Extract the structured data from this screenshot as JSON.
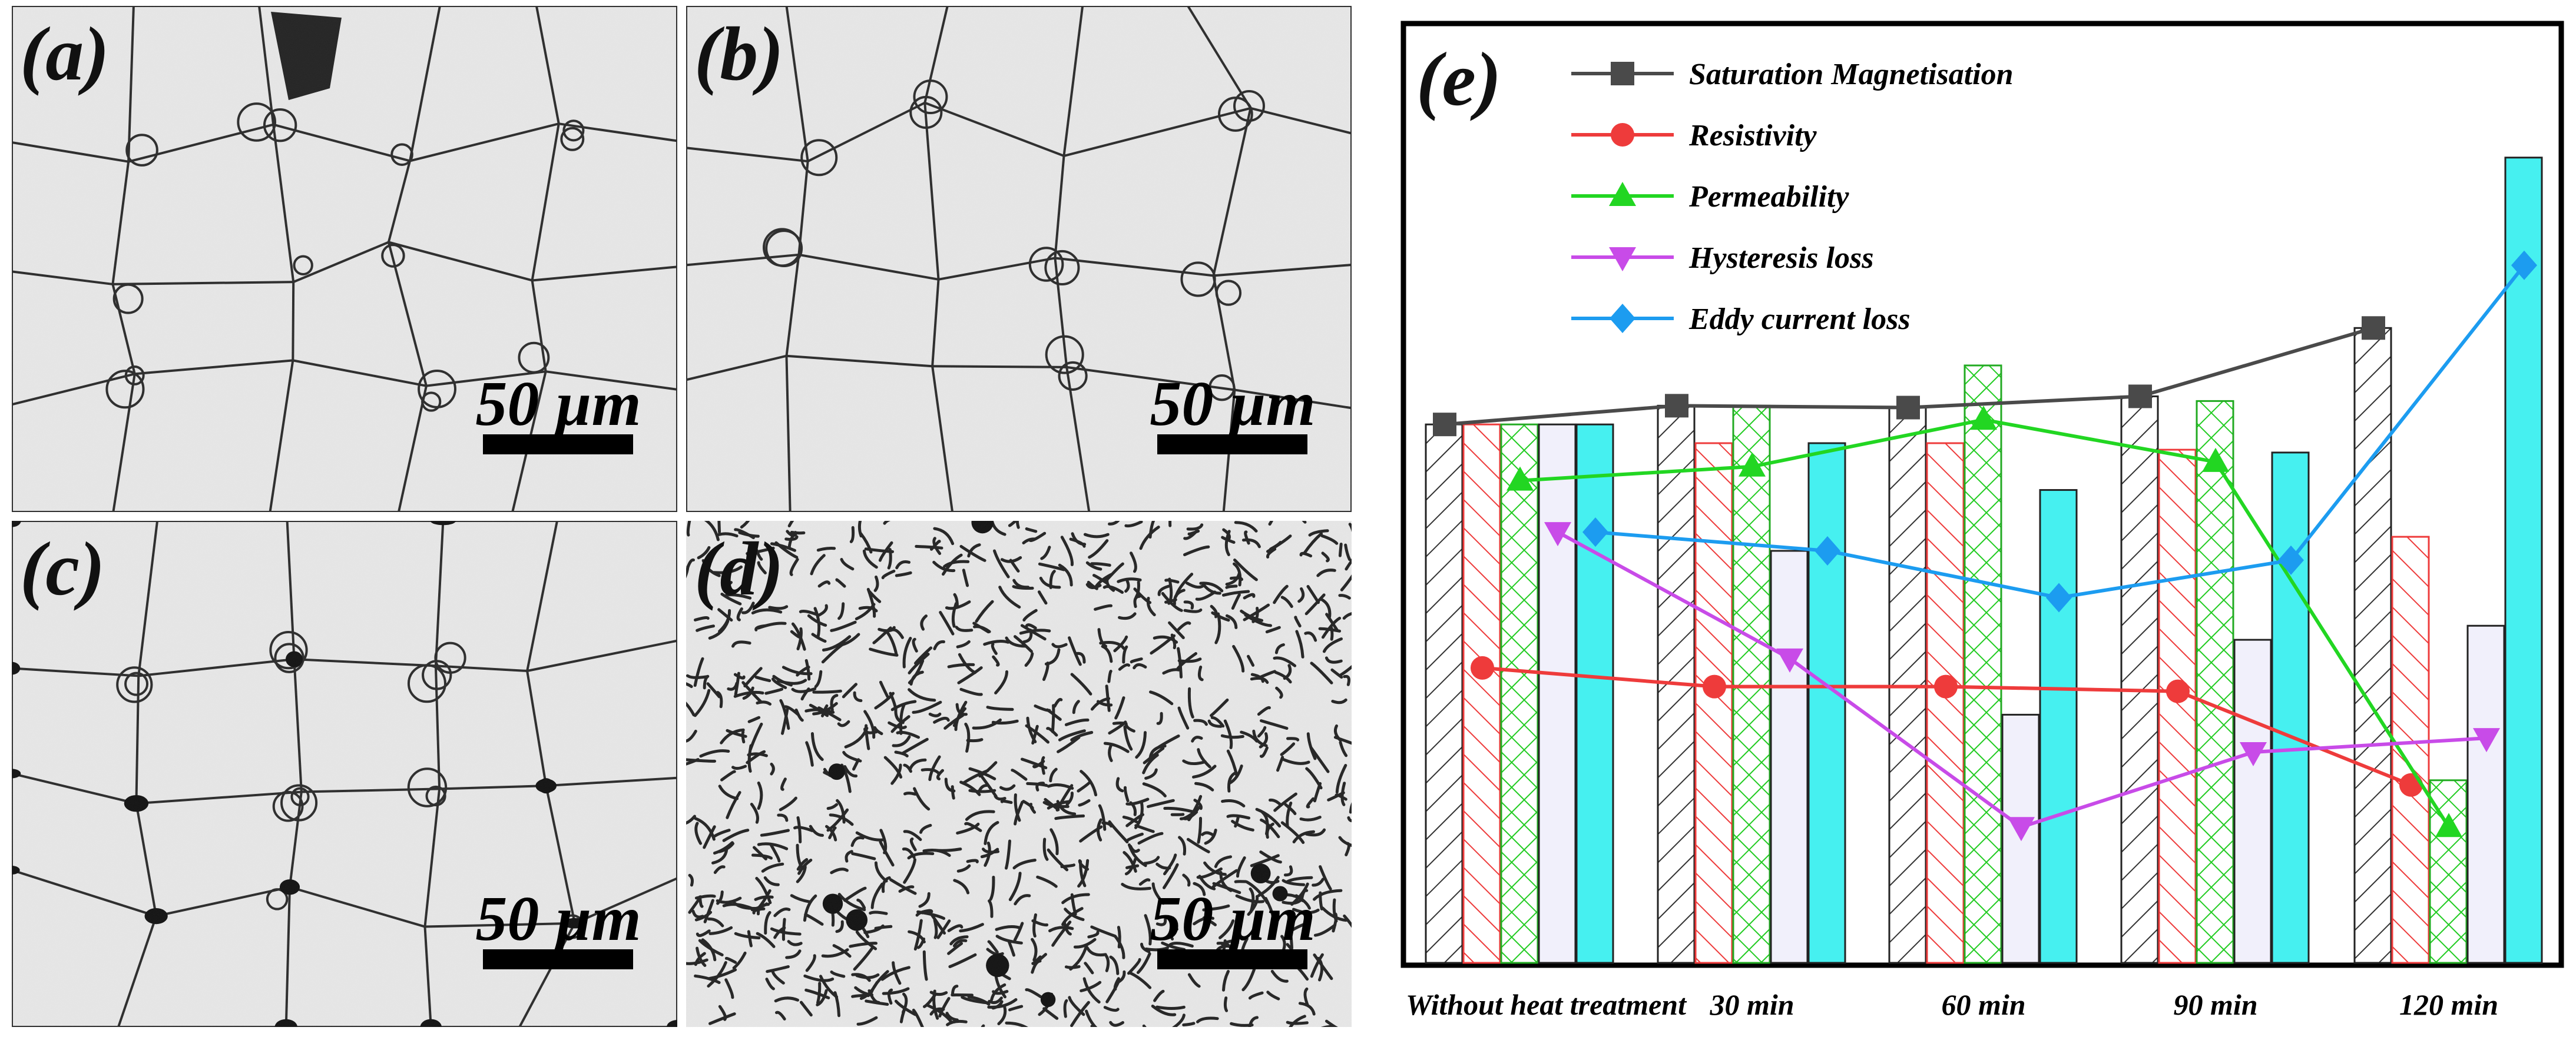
{
  "panels": [
    {
      "label": "(a)",
      "scale_bar": "50 µm",
      "texture": "grains"
    },
    {
      "label": "(b)",
      "scale_bar": "50 µm",
      "texture": "grains"
    },
    {
      "label": "(c)",
      "scale_bar": "50 µm",
      "texture": "grains-pores"
    },
    {
      "label": "(d)",
      "scale_bar": "50 µm",
      "texture": "worm"
    }
  ],
  "chart_data": {
    "type": "bar",
    "panel_label": "(e)",
    "categories": [
      "Without heat treatment",
      "30 min",
      "60 min",
      "90 min",
      "120 min"
    ],
    "ylim": [
      0,
      100
    ],
    "grid": false,
    "legend_position": "top-left",
    "series": [
      {
        "name": "Saturation Magnetisation",
        "color": "#4a4a4a",
        "marker": "square",
        "fill": "hatch-black",
        "values": [
          57.5,
          59.5,
          59.3,
          60.5,
          67.8
        ]
      },
      {
        "name": "Resistivity",
        "color": "#ee3b3b",
        "marker": "circle",
        "fill": "hatch-red",
        "values": [
          57.5,
          55.5,
          55.5,
          54.8,
          45.5
        ]
      },
      {
        "name": "Permeability",
        "color": "#22d622",
        "marker": "triangle-up",
        "fill": "crosshatch-green",
        "values": [
          57.5,
          59.5,
          63.8,
          60.0,
          19.5
        ]
      },
      {
        "name": "Hysteresis loss",
        "color": "#c84be8",
        "marker": "triangle-down",
        "fill": "lavender",
        "values": [
          57.5,
          44.0,
          26.5,
          34.5,
          36.0
        ]
      },
      {
        "name": "Eddy current loss",
        "color": "#1c9cf0",
        "marker": "diamond",
        "fill": "cyan",
        "values": [
          57.5,
          55.5,
          50.5,
          54.5,
          86.0
        ]
      }
    ],
    "lines": [
      {
        "name": "Saturation Magnetisation",
        "values": [
          57.5,
          59.5,
          59.3,
          60.5,
          67.8
        ]
      },
      {
        "name": "Resistivity",
        "values": [
          31.5,
          29.5,
          29.5,
          29.0,
          19.0
        ]
      },
      {
        "name": "Permeability",
        "values": [
          51.5,
          53.0,
          58.0,
          53.5,
          14.5
        ]
      },
      {
        "name": "Hysteresis loss",
        "values": [
          46.0,
          32.5,
          14.5,
          22.5,
          24.0
        ]
      },
      {
        "name": "Eddy current loss",
        "values": [
          46.0,
          44.0,
          39.0,
          43.0,
          74.5
        ]
      }
    ]
  }
}
